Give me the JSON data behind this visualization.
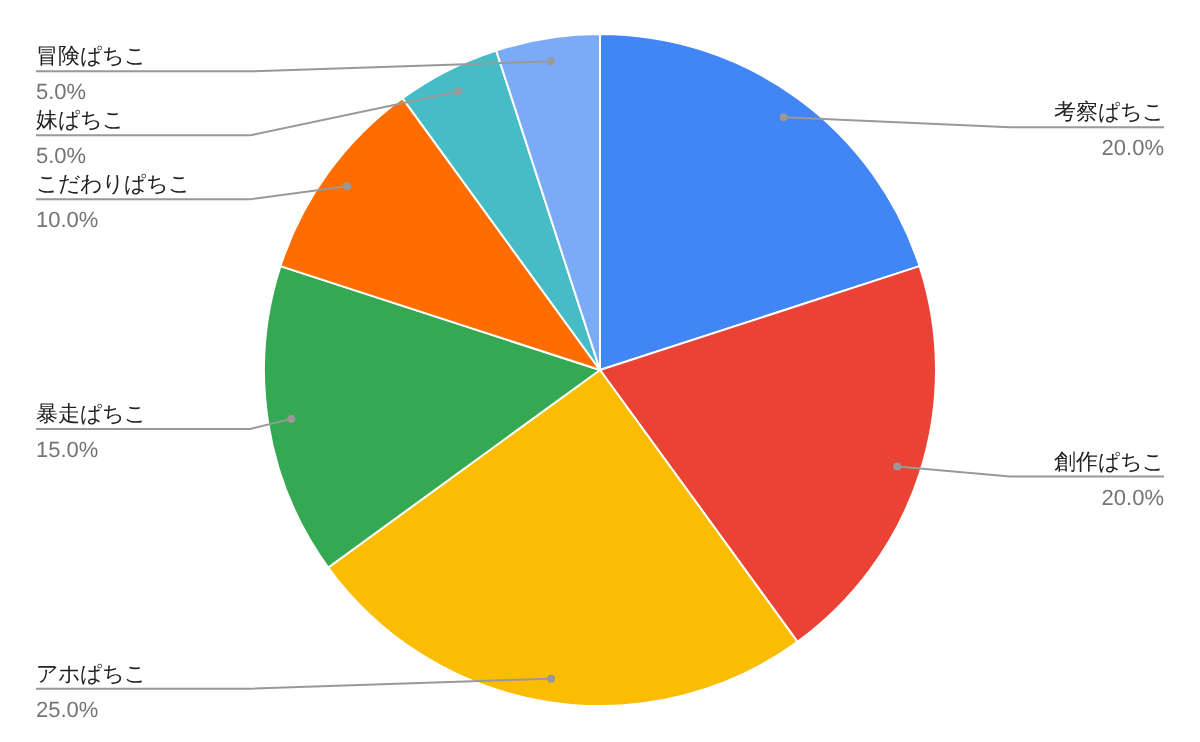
{
  "chart_data": {
    "type": "pie",
    "categories": [
      "考察ぱちこ",
      "創作ぱちこ",
      "アホぱちこ",
      "暴走ぱちこ",
      "こだわりぱちこ",
      "妹ぱちこ",
      "冒険ぱちこ"
    ],
    "values": [
      20,
      20,
      25,
      15,
      10,
      5,
      5
    ],
    "value_labels": [
      "20.0%",
      "20.0%",
      "25.0%",
      "15.0%",
      "10.0%",
      "5.0%",
      "5.0%"
    ],
    "colors": [
      "#4285f4",
      "#ea4335",
      "#fbbc04",
      "#34a853",
      "#ff6d01",
      "#46bdc6",
      "#7baaf7"
    ]
  }
}
